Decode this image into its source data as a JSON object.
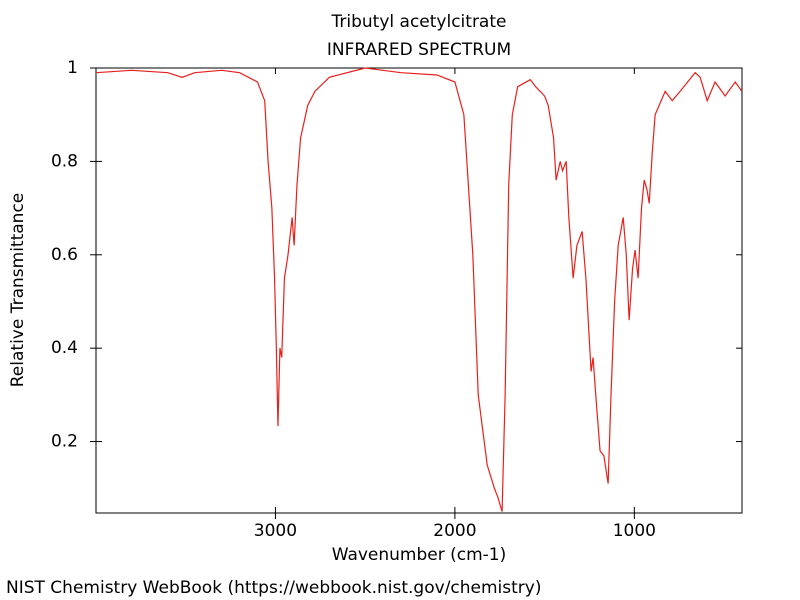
{
  "chart_data": {
    "type": "line",
    "title": "Tributyl acetylcitrate",
    "subtitle": "INFRARED SPECTRUM",
    "x_label": "Wavenumber (cm-1)",
    "y_label": "Relative Transmittance",
    "x": [
      4000,
      3800,
      3600,
      3520,
      3450,
      3300,
      3200,
      3100,
      3060,
      3041,
      3020,
      3005,
      2995,
      2986,
      2975,
      2965,
      2950,
      2930,
      2907,
      2896,
      2880,
      2860,
      2820,
      2780,
      2700,
      2500,
      2300,
      2100,
      2000,
      1950,
      1900,
      1870,
      1820,
      1780,
      1760,
      1737,
      1720,
      1700,
      1680,
      1650,
      1580,
      1550,
      1500,
      1480,
      1450,
      1436,
      1413,
      1400,
      1380,
      1365,
      1341,
      1320,
      1291,
      1270,
      1241,
      1230,
      1215,
      1191,
      1170,
      1146,
      1130,
      1110,
      1090,
      1062,
      1045,
      1029,
      1010,
      996,
      979,
      960,
      945,
      930,
      917,
      900,
      884,
      828,
      789,
      745,
      661,
      633,
      594,
      550,
      494,
      438,
      400
    ],
    "values": [
      0.99,
      0.995,
      0.99,
      0.98,
      0.99,
      0.995,
      0.99,
      0.97,
      0.93,
      0.8,
      0.7,
      0.55,
      0.4,
      0.233,
      0.4,
      0.38,
      0.55,
      0.6,
      0.68,
      0.62,
      0.75,
      0.85,
      0.92,
      0.95,
      0.98,
      1.0,
      0.99,
      0.985,
      0.97,
      0.9,
      0.6,
      0.3,
      0.15,
      0.1,
      0.08,
      0.05,
      0.3,
      0.75,
      0.9,
      0.96,
      0.975,
      0.96,
      0.94,
      0.92,
      0.85,
      0.76,
      0.8,
      0.78,
      0.8,
      0.68,
      0.55,
      0.62,
      0.65,
      0.55,
      0.35,
      0.38,
      0.3,
      0.18,
      0.17,
      0.11,
      0.3,
      0.5,
      0.62,
      0.68,
      0.6,
      0.46,
      0.57,
      0.61,
      0.55,
      0.7,
      0.76,
      0.74,
      0.71,
      0.82,
      0.9,
      0.95,
      0.93,
      0.95,
      0.99,
      0.98,
      0.93,
      0.97,
      0.94,
      0.97,
      0.95
    ],
    "color": "#e8201c",
    "xlim": [
      4000,
      400
    ],
    "xticks": [
      3000,
      2000,
      1000
    ],
    "ylim": [
      0.047,
      1
    ],
    "yticks": [
      0.2,
      0.4,
      0.6,
      0.8,
      1
    ]
  },
  "footer": "NIST Chemistry WebBook (https://webbook.nist.gov/chemistry)"
}
